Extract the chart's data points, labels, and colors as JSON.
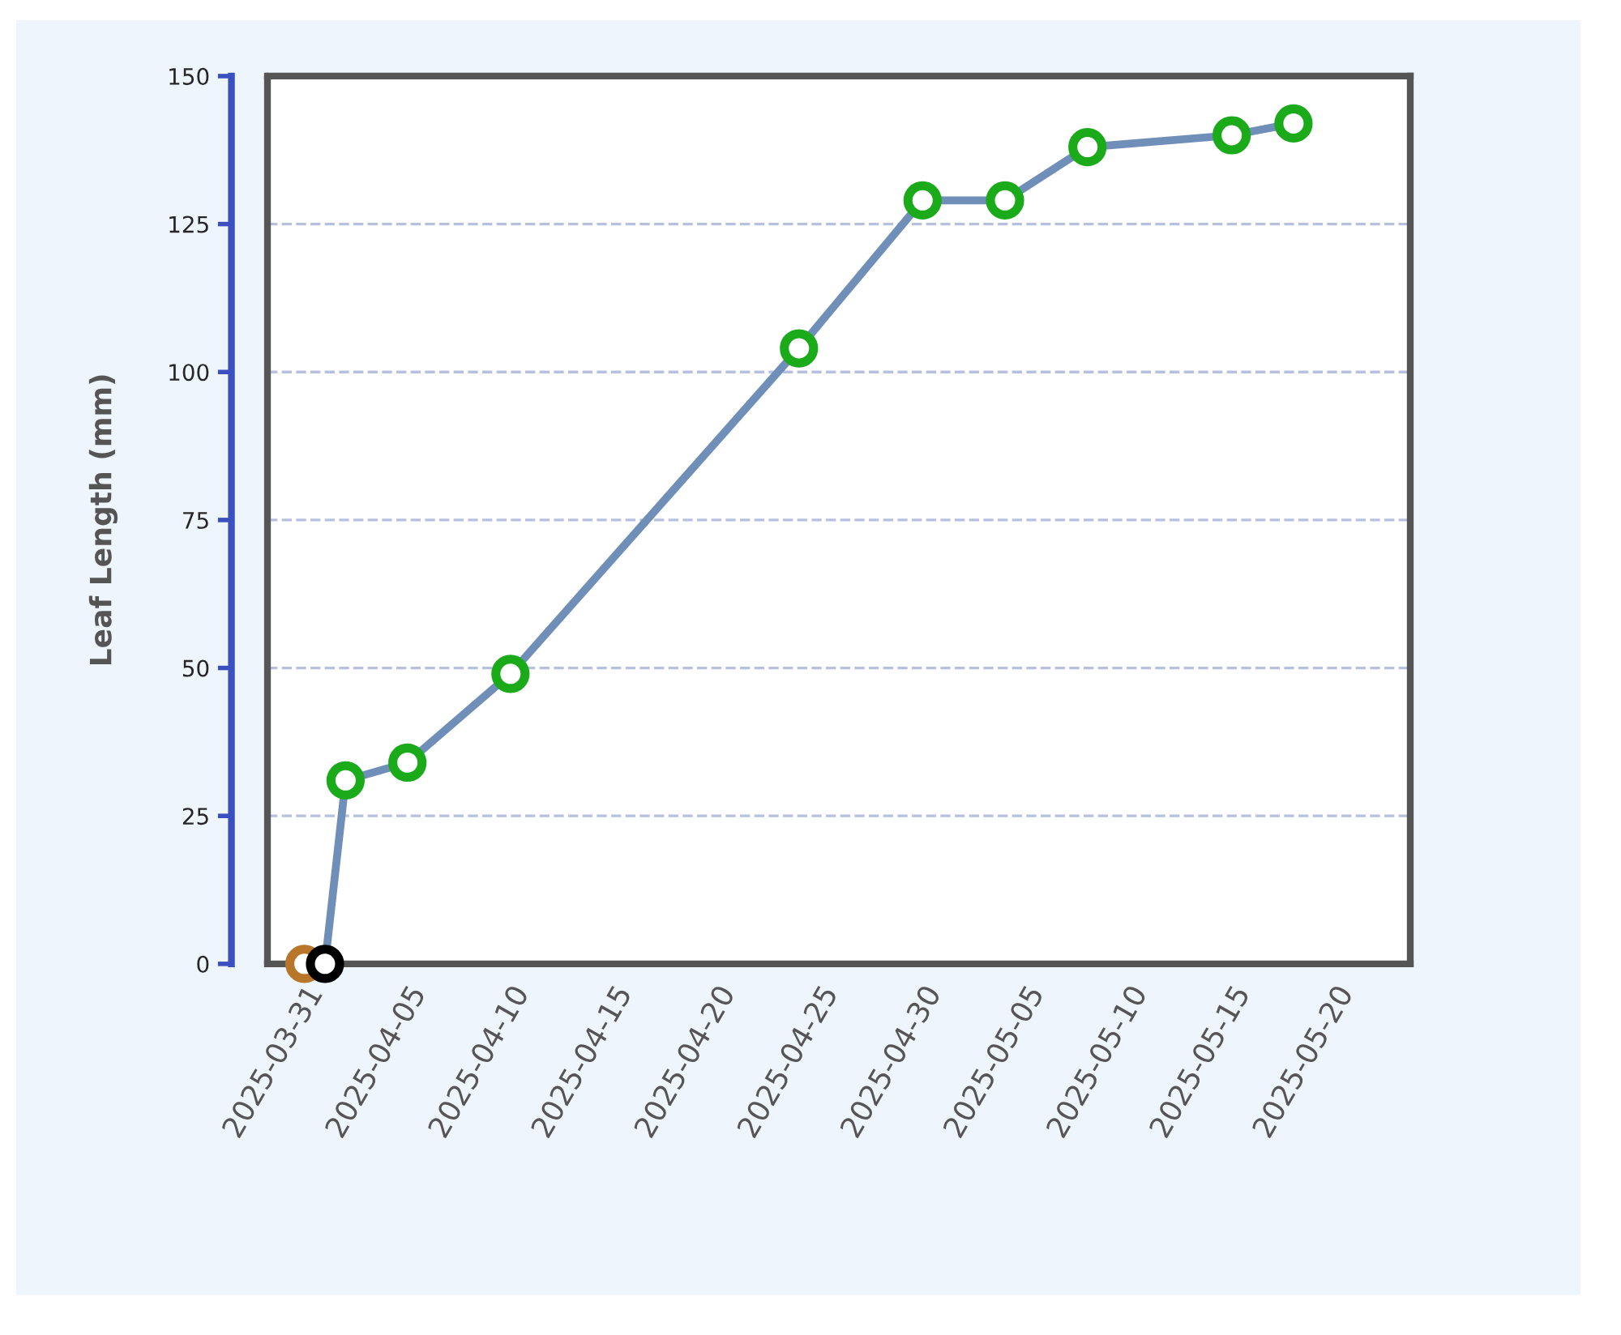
{
  "chart_data": {
    "type": "line",
    "ylabel": "Leaf Length (mm)",
    "x": [
      "2025-03-31",
      "2025-04-01",
      "2025-04-02",
      "2025-04-05",
      "2025-04-10",
      "2025-04-24",
      "2025-04-30",
      "2025-05-04",
      "2025-05-08",
      "2025-05-15",
      "2025-05-18"
    ],
    "series": [
      {
        "color": "#6f8fb8",
        "colors": [
          "#b8762a",
          "#000000",
          "#1aaa1a",
          "#1aaa1a",
          "#1aaa1a",
          "#1aaa1a",
          "#1aaa1a",
          "#1aaa1a",
          "#1aaa1a",
          "#1aaa1a",
          "#1aaa1a"
        ],
        "values": [
          0,
          0,
          31,
          34,
          49,
          104,
          129,
          129,
          138,
          140,
          142
        ]
      }
    ],
    "xlim": [
      "2025-03-29T05:00",
      "2025-05-23T16:00"
    ],
    "xticks": [
      "2025-03-31",
      "2025-04-05",
      "2025-04-10",
      "2025-04-15",
      "2025-04-20",
      "2025-04-25",
      "2025-04-30",
      "2025-05-05",
      "2025-05-10",
      "2025-05-15",
      "2025-05-20"
    ],
    "ylim": [
      0,
      150
    ],
    "yticks": [
      0,
      25,
      50,
      75,
      100,
      125,
      150
    ],
    "grid": "y",
    "marker": "circle",
    "line_style": "solid"
  }
}
